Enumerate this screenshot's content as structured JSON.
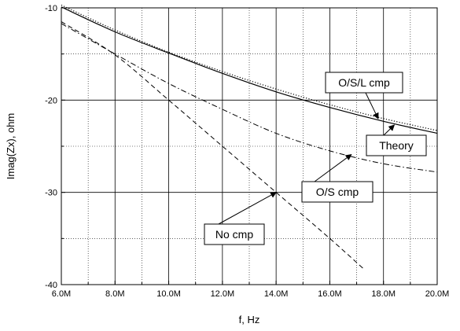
{
  "chart_data": {
    "type": "line",
    "xlabel": "f, Hz",
    "ylabel": "Imag(Zx), ohm",
    "xlim": [
      6000000,
      20000000
    ],
    "ylim": [
      -40,
      -10
    ],
    "x_ticks": [
      6000000,
      8000000,
      10000000,
      12000000,
      14000000,
      16000000,
      18000000,
      20000000
    ],
    "x_tick_labels": [
      "6.0M",
      "8.0M",
      "10.0M",
      "12.0M",
      "14.0M",
      "16.0M",
      "18.0M",
      "20.0M"
    ],
    "x_minor_ticks": [
      7000000,
      9000000,
      11000000,
      13000000,
      15000000,
      17000000,
      19000000
    ],
    "y_ticks": [
      -40,
      -30,
      -20,
      -10
    ],
    "y_tick_labels": [
      "-40",
      "-30",
      "-20",
      "-10"
    ],
    "y_minor_ticks": [
      -35,
      -25,
      -15
    ],
    "grid": true,
    "series": [
      {
        "name": "O/S/L cmp",
        "style": "solid",
        "x": [
          6000000,
          8000000,
          10000000,
          12000000,
          14000000,
          16000000,
          18000000,
          20000000
        ],
        "y": [
          -9.9,
          -12.6,
          -14.9,
          -17.1,
          -19.1,
          -20.8,
          -22.3,
          -23.6
        ]
      },
      {
        "name": "Theory",
        "style": "dotted",
        "x": [
          6000000,
          8000000,
          10000000,
          12000000,
          14000000,
          16000000,
          18000000,
          20000000
        ],
        "y": [
          -9.7,
          -12.4,
          -14.8,
          -16.9,
          -18.8,
          -20.5,
          -22.0,
          -23.3
        ]
      },
      {
        "name": "O/S cmp",
        "style": "dashdot",
        "x": [
          6000000,
          8000000,
          10000000,
          12000000,
          14000000,
          16000000,
          18000000,
          20000000
        ],
        "y": [
          -11.7,
          -15.0,
          -18.2,
          -21.0,
          -23.6,
          -25.5,
          -26.9,
          -27.8
        ]
      },
      {
        "name": "No cmp",
        "style": "dashed",
        "x": [
          6000000,
          8000000,
          10000000,
          12000000,
          14000000,
          16000000,
          17300000
        ],
        "y": [
          -11.5,
          -15.1,
          -20.0,
          -25.0,
          -30.0,
          -35.0,
          -38.4
        ]
      }
    ],
    "annotations": [
      {
        "text": "O/S/L cmp",
        "arrow_to": {
          "x": 17800000,
          "y": -22.0
        }
      },
      {
        "text": "Theory",
        "arrow_to": {
          "x": 18400000,
          "y": -22.7
        }
      },
      {
        "text": "O/S cmp",
        "arrow_to": {
          "x": 16800000,
          "y": -25.9
        }
      },
      {
        "text": "No cmp",
        "arrow_to": {
          "x": 14000000,
          "y": -30.0
        }
      }
    ]
  }
}
